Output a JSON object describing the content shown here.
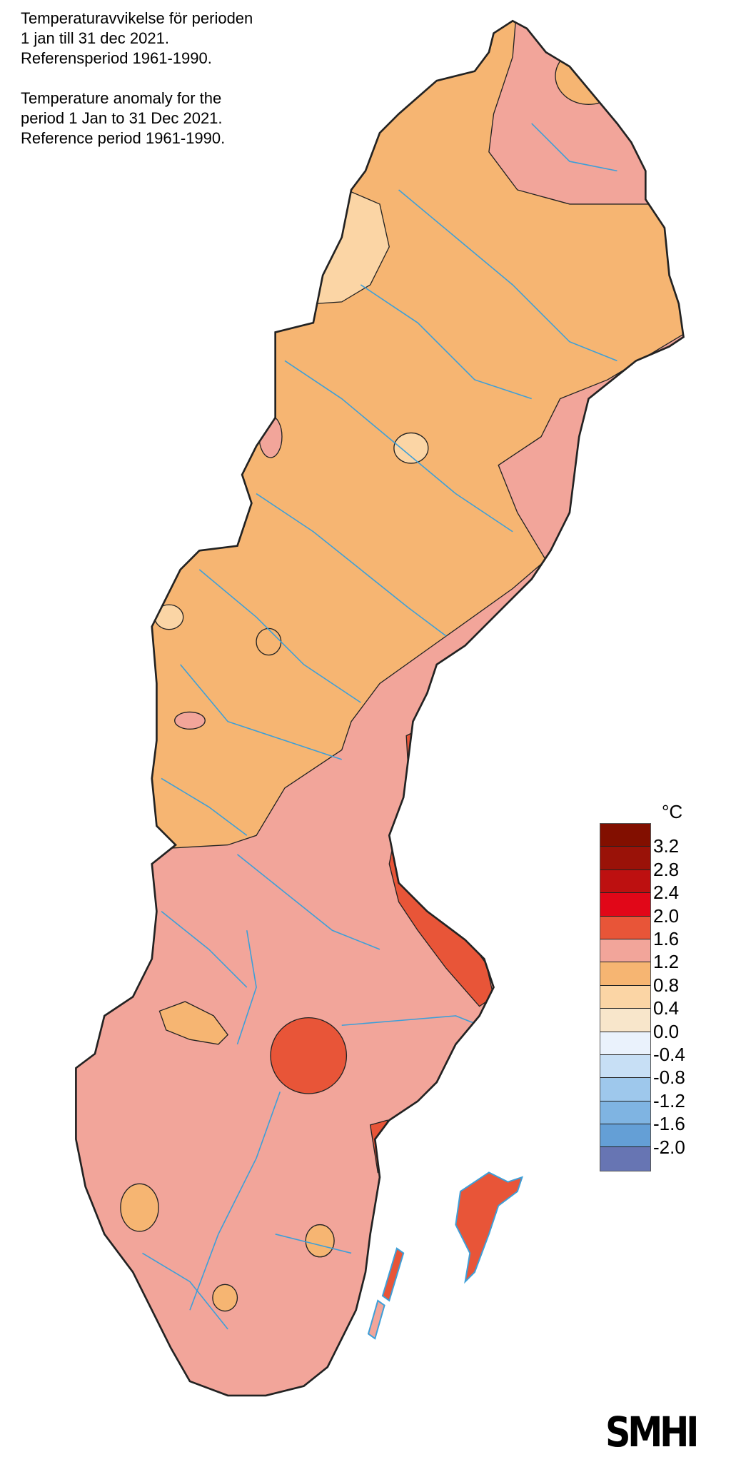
{
  "title": {
    "sv": [
      "Temperaturavvikelse för perioden",
      "1 jan till 31 dec 2021.",
      "Referensperiod 1961-1990."
    ],
    "en": [
      "Temperature anomaly for the",
      "period 1 Jan to 31 Dec 2021.",
      "Reference period 1961-1990."
    ]
  },
  "legend": {
    "unit": "°C",
    "colors": [
      "#820f00",
      "#9a1208",
      "#bd1010",
      "#e10718",
      "#e85538",
      "#f2a59a",
      "#f6b572",
      "#fbd5a5",
      "#f8e6cb",
      "#eaf2fc",
      "#c7dff5",
      "#9ec8ec",
      "#7fb4e2",
      "#649fd6",
      "#6775b3"
    ],
    "labels": [
      "3.2",
      "2.8",
      "2.4",
      "2.0",
      "1.6",
      "1.2",
      "0.8",
      "0.4",
      "0.0",
      "-0.4",
      "-0.8",
      "-1.2",
      "-1.6",
      "-2.0"
    ]
  },
  "map": {
    "region_colors": {
      "above_1_6": "#e85538",
      "1_2_to_1_6": "#f2a59a",
      "0_8_to_1_2": "#f6b572",
      "0_4_to_0_8": "#fbd5a5"
    },
    "water_color": "#3d9fd8"
  },
  "logo": "SMHI"
}
